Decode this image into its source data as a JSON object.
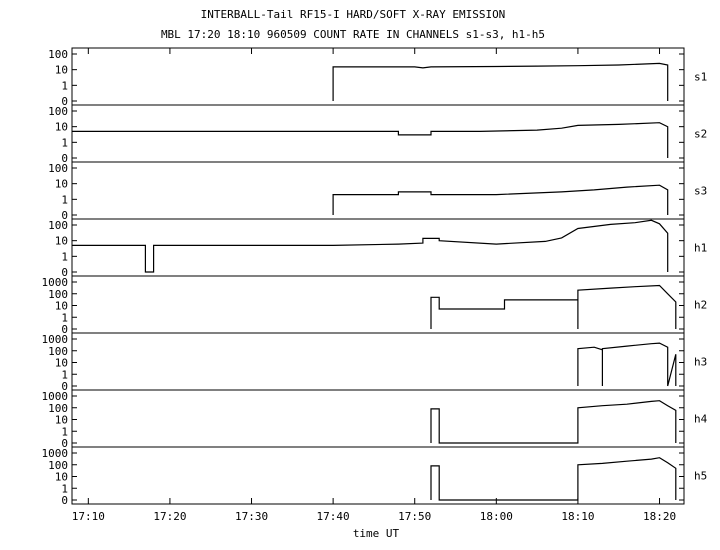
{
  "chart_data": {
    "type": "line",
    "title": "INTERBALL-Tail RF15-I HARD/SOFT X-RAY EMISSION",
    "subtitle": "MBL 17:20 18:10 960509  COUNT RATE IN CHANNELS s1-s3, h1-h5",
    "xlabel": "time UT",
    "x_ticks": [
      "17:10",
      "17:20",
      "17:30",
      "17:40",
      "17:50",
      "18:00",
      "18:10",
      "18:20"
    ],
    "xlim": [
      "17:08",
      "18:23"
    ],
    "y_scale": "log",
    "panels": [
      {
        "name": "s1",
        "y_ticks": [
          "100",
          "10",
          "1",
          "0"
        ],
        "points": [
          [
            "17:40",
            0
          ],
          [
            "17:40",
            15
          ],
          [
            "17:50",
            15
          ],
          [
            "17:51",
            13
          ],
          [
            "17:52",
            15
          ],
          [
            "18:00",
            16
          ],
          [
            "18:05",
            17
          ],
          [
            "18:10",
            18
          ],
          [
            "18:15",
            20
          ],
          [
            "18:20",
            25
          ],
          [
            "18:21",
            20
          ],
          [
            "18:21",
            0
          ]
        ]
      },
      {
        "name": "s2",
        "y_ticks": [
          "100",
          "10",
          "1",
          "0"
        ],
        "points": [
          [
            "17:08",
            5
          ],
          [
            "17:20",
            5
          ],
          [
            "17:30",
            5
          ],
          [
            "17:40",
            5
          ],
          [
            "17:48",
            5
          ],
          [
            "17:48",
            3
          ],
          [
            "17:52",
            3
          ],
          [
            "17:52",
            5
          ],
          [
            "17:58",
            5
          ],
          [
            "18:05",
            6
          ],
          [
            "18:08",
            8
          ],
          [
            "18:10",
            12
          ],
          [
            "18:15",
            14
          ],
          [
            "18:20",
            18
          ],
          [
            "18:21",
            10
          ],
          [
            "18:21",
            0
          ]
        ]
      },
      {
        "name": "s3",
        "y_ticks": [
          "100",
          "10",
          "1",
          "0"
        ],
        "points": [
          [
            "17:40",
            0
          ],
          [
            "17:40",
            2
          ],
          [
            "17:48",
            2
          ],
          [
            "17:48",
            3
          ],
          [
            "17:52",
            3
          ],
          [
            "17:52",
            2
          ],
          [
            "18:00",
            2
          ],
          [
            "18:08",
            3
          ],
          [
            "18:12",
            4
          ],
          [
            "18:16",
            6
          ],
          [
            "18:20",
            8
          ],
          [
            "18:21",
            4
          ],
          [
            "18:21",
            0
          ]
        ]
      },
      {
        "name": "h1",
        "y_ticks": [
          "100",
          "10",
          "1",
          "0"
        ],
        "points": [
          [
            "17:08",
            5
          ],
          [
            "17:17",
            5
          ],
          [
            "17:17",
            0
          ],
          [
            "17:18",
            0
          ],
          [
            "17:18",
            5
          ],
          [
            "17:40",
            5
          ],
          [
            "17:48",
            6
          ],
          [
            "17:51",
            7
          ],
          [
            "17:51",
            14
          ],
          [
            "17:53",
            14
          ],
          [
            "17:53",
            10
          ],
          [
            "18:00",
            6
          ],
          [
            "18:06",
            9
          ],
          [
            "18:08",
            15
          ],
          [
            "18:10",
            60
          ],
          [
            "18:14",
            110
          ],
          [
            "18:17",
            140
          ],
          [
            "18:19",
            200
          ],
          [
            "18:20",
            120
          ],
          [
            "18:21",
            30
          ],
          [
            "18:21",
            0
          ]
        ]
      },
      {
        "name": "h2",
        "y_ticks": [
          "1000",
          "100",
          "10",
          "1",
          "0"
        ],
        "points": [
          [
            "17:52",
            0
          ],
          [
            "17:52",
            50
          ],
          [
            "17:53",
            50
          ],
          [
            "17:53",
            5
          ],
          [
            "18:01",
            5
          ],
          [
            "18:01",
            30
          ],
          [
            "18:10",
            30
          ],
          [
            "18:10",
            0
          ],
          [
            "18:10",
            200
          ],
          [
            "18:14",
            300
          ],
          [
            "18:17",
            400
          ],
          [
            "18:20",
            500
          ],
          [
            "18:21",
            100
          ],
          [
            "18:22",
            20
          ],
          [
            "18:22",
            0
          ]
        ]
      },
      {
        "name": "h3",
        "y_ticks": [
          "1000",
          "100",
          "10",
          "1",
          "0"
        ],
        "points": [
          [
            "18:10",
            0
          ],
          [
            "18:10",
            150
          ],
          [
            "18:12",
            200
          ],
          [
            "18:13",
            120
          ],
          [
            "18:13",
            0
          ],
          [
            "18:13",
            150
          ],
          [
            "18:16",
            250
          ],
          [
            "18:19",
            400
          ],
          [
            "18:20",
            450
          ],
          [
            "18:21",
            200
          ],
          [
            "18:21",
            0
          ],
          [
            "18:22",
            50
          ],
          [
            "18:22",
            0
          ]
        ]
      },
      {
        "name": "h4",
        "y_ticks": [
          "1000",
          "100",
          "10",
          "1",
          "0"
        ],
        "points": [
          [
            "17:52",
            0
          ],
          [
            "17:52",
            80
          ],
          [
            "17:53",
            80
          ],
          [
            "17:53",
            0
          ],
          [
            "18:10",
            0
          ],
          [
            "18:10",
            100
          ],
          [
            "18:13",
            150
          ],
          [
            "18:16",
            200
          ],
          [
            "18:19",
            350
          ],
          [
            "18:20",
            400
          ],
          [
            "18:21",
            150
          ],
          [
            "18:22",
            60
          ],
          [
            "18:22",
            0
          ]
        ]
      },
      {
        "name": "h5",
        "y_ticks": [
          "1000",
          "100",
          "10",
          "1",
          "0"
        ],
        "points": [
          [
            "17:52",
            0
          ],
          [
            "17:52",
            80
          ],
          [
            "17:53",
            80
          ],
          [
            "17:53",
            0
          ],
          [
            "18:10",
            0
          ],
          [
            "18:10",
            100
          ],
          [
            "18:13",
            130
          ],
          [
            "18:16",
            200
          ],
          [
            "18:19",
            300
          ],
          [
            "18:20",
            400
          ],
          [
            "18:21",
            150
          ],
          [
            "18:22",
            50
          ],
          [
            "18:22",
            0
          ]
        ]
      }
    ],
    "grid": false,
    "line_color": "#000000"
  }
}
